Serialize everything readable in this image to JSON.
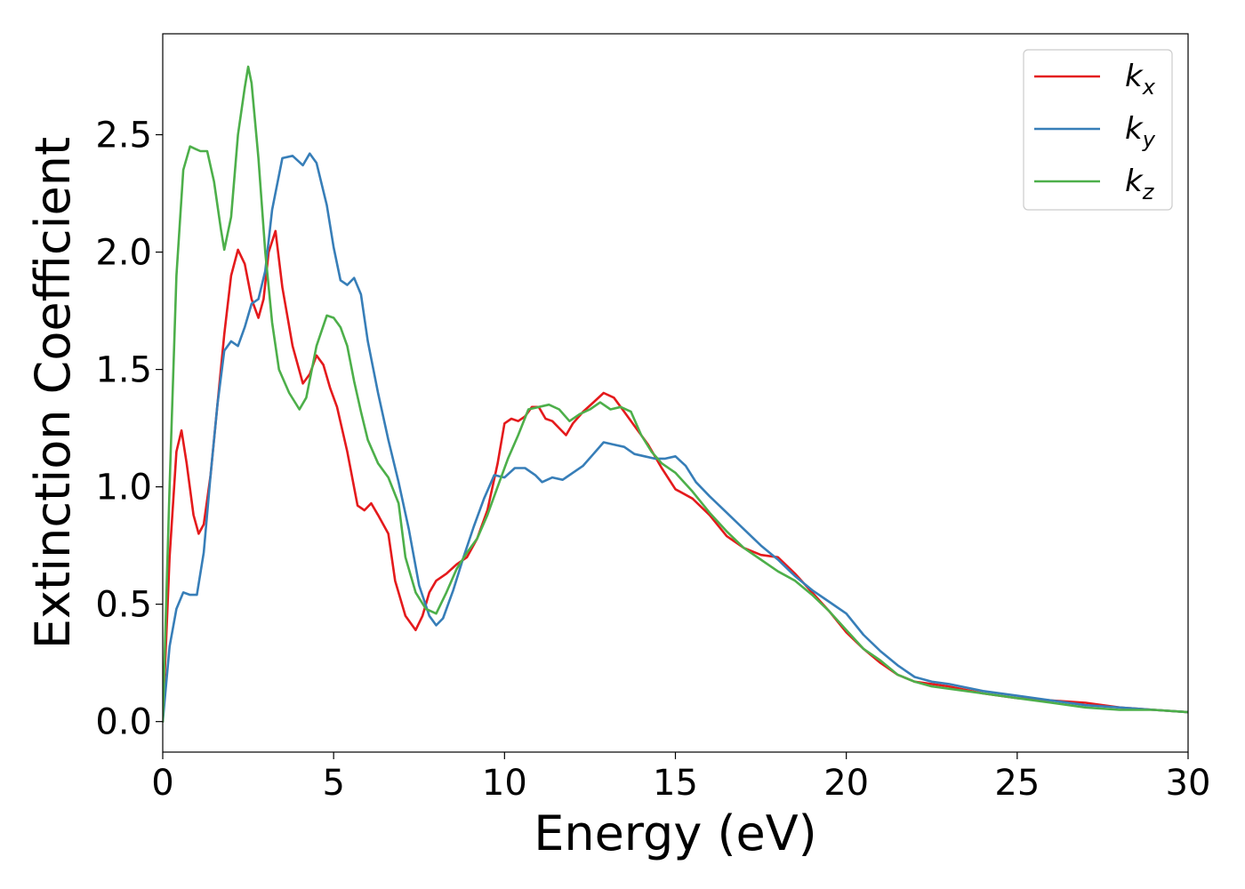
{
  "chart_data": {
    "type": "line",
    "xlabel": "Energy (eV)",
    "ylabel": "Extinction Coefficient",
    "xlim": [
      0,
      30
    ],
    "ylim": [
      -0.13,
      2.93
    ],
    "xticks": [
      0,
      5,
      10,
      15,
      20,
      25,
      30
    ],
    "xtick_labels": [
      "0",
      "5",
      "10",
      "15",
      "20",
      "25",
      "30"
    ],
    "yticks": [
      0.0,
      0.5,
      1.0,
      1.5,
      2.0,
      2.5
    ],
    "ytick_labels": [
      "0.0",
      "0.5",
      "1.0",
      "1.5",
      "2.0",
      "2.5"
    ],
    "grid": false,
    "legend_position": "top-right",
    "series": [
      {
        "name": "k_x",
        "label_main": "k",
        "label_sub": "x",
        "color": "#e41a1c",
        "x": [
          0,
          0.2,
          0.4,
          0.55,
          0.7,
          0.9,
          1.05,
          1.2,
          1.4,
          1.6,
          1.8,
          2.0,
          2.2,
          2.4,
          2.6,
          2.8,
          2.95,
          3.1,
          3.3,
          3.5,
          3.8,
          4.1,
          4.3,
          4.5,
          4.7,
          4.9,
          5.1,
          5.4,
          5.7,
          5.9,
          6.1,
          6.3,
          6.6,
          6.8,
          7.1,
          7.4,
          7.6,
          7.8,
          8.0,
          8.3,
          8.6,
          8.9,
          9.2,
          9.5,
          9.8,
          10.0,
          10.2,
          10.4,
          10.6,
          10.8,
          11.0,
          11.2,
          11.4,
          11.6,
          11.8,
          12.0,
          12.3,
          12.6,
          12.9,
          13.2,
          13.5,
          13.8,
          14.2,
          14.6,
          15.0,
          15.5,
          16.0,
          16.5,
          17.0,
          17.5,
          18.0,
          18.5,
          19.0,
          19.5,
          20.0,
          20.5,
          21.0,
          21.5,
          22.0,
          22.5,
          23.0,
          24.0,
          25.0,
          26.0,
          27.0,
          28.0,
          29.0,
          30.0
        ],
        "y": [
          0.0,
          0.7,
          1.15,
          1.24,
          1.1,
          0.88,
          0.8,
          0.84,
          1.05,
          1.35,
          1.65,
          1.9,
          2.01,
          1.95,
          1.8,
          1.72,
          1.8,
          2.0,
          2.09,
          1.85,
          1.6,
          1.44,
          1.48,
          1.56,
          1.52,
          1.42,
          1.34,
          1.15,
          0.92,
          0.9,
          0.93,
          0.88,
          0.8,
          0.6,
          0.45,
          0.39,
          0.45,
          0.55,
          0.6,
          0.63,
          0.67,
          0.7,
          0.78,
          0.9,
          1.1,
          1.27,
          1.29,
          1.28,
          1.3,
          1.34,
          1.34,
          1.29,
          1.28,
          1.25,
          1.22,
          1.27,
          1.32,
          1.36,
          1.4,
          1.38,
          1.32,
          1.26,
          1.18,
          1.08,
          0.99,
          0.95,
          0.88,
          0.79,
          0.74,
          0.71,
          0.7,
          0.63,
          0.55,
          0.47,
          0.38,
          0.31,
          0.25,
          0.2,
          0.17,
          0.16,
          0.15,
          0.12,
          0.1,
          0.09,
          0.08,
          0.06,
          0.05,
          0.04
        ]
      },
      {
        "name": "k_y",
        "label_main": "k",
        "label_sub": "y",
        "color": "#377eb8",
        "x": [
          0,
          0.2,
          0.4,
          0.6,
          0.8,
          1.0,
          1.2,
          1.4,
          1.6,
          1.8,
          2.0,
          2.2,
          2.4,
          2.6,
          2.8,
          3.0,
          3.2,
          3.5,
          3.8,
          4.1,
          4.3,
          4.5,
          4.8,
          5.0,
          5.2,
          5.4,
          5.6,
          5.8,
          6.0,
          6.3,
          6.6,
          6.9,
          7.2,
          7.5,
          7.8,
          8.0,
          8.2,
          8.5,
          8.8,
          9.1,
          9.4,
          9.7,
          10.0,
          10.3,
          10.6,
          10.9,
          11.1,
          11.4,
          11.7,
          12.0,
          12.3,
          12.6,
          12.9,
          13.2,
          13.5,
          13.8,
          14.1,
          14.4,
          14.7,
          15.0,
          15.3,
          15.6,
          16.0,
          16.5,
          17.0,
          17.5,
          18.0,
          18.5,
          19.0,
          19.5,
          20.0,
          20.5,
          21.0,
          21.5,
          22.0,
          22.5,
          23.0,
          24.0,
          25.0,
          26.0,
          27.0,
          28.0,
          29.0,
          30.0
        ],
        "y": [
          0.0,
          0.32,
          0.48,
          0.55,
          0.54,
          0.54,
          0.72,
          1.05,
          1.35,
          1.58,
          1.62,
          1.6,
          1.68,
          1.78,
          1.8,
          1.92,
          2.18,
          2.4,
          2.41,
          2.37,
          2.42,
          2.38,
          2.2,
          2.02,
          1.88,
          1.86,
          1.89,
          1.82,
          1.62,
          1.4,
          1.2,
          1.02,
          0.82,
          0.58,
          0.45,
          0.41,
          0.44,
          0.56,
          0.7,
          0.83,
          0.95,
          1.05,
          1.04,
          1.08,
          1.08,
          1.05,
          1.02,
          1.04,
          1.03,
          1.06,
          1.09,
          1.14,
          1.19,
          1.18,
          1.17,
          1.14,
          1.13,
          1.12,
          1.12,
          1.13,
          1.09,
          1.02,
          0.96,
          0.89,
          0.82,
          0.75,
          0.69,
          0.62,
          0.56,
          0.51,
          0.46,
          0.37,
          0.3,
          0.24,
          0.19,
          0.17,
          0.16,
          0.13,
          0.11,
          0.09,
          0.07,
          0.06,
          0.05,
          0.04
        ]
      },
      {
        "name": "k_z",
        "label_main": "k",
        "label_sub": "z",
        "color": "#4daf4a",
        "x": [
          0,
          0.2,
          0.4,
          0.6,
          0.8,
          0.95,
          1.1,
          1.3,
          1.5,
          1.7,
          1.8,
          2.0,
          2.2,
          2.4,
          2.5,
          2.6,
          2.8,
          3.0,
          3.2,
          3.4,
          3.7,
          4.0,
          4.2,
          4.5,
          4.8,
          5.0,
          5.2,
          5.4,
          5.6,
          5.8,
          6.0,
          6.3,
          6.6,
          6.9,
          7.1,
          7.4,
          7.7,
          8.0,
          8.3,
          8.6,
          8.9,
          9.2,
          9.5,
          9.8,
          10.1,
          10.4,
          10.7,
          11.0,
          11.3,
          11.6,
          11.9,
          12.2,
          12.5,
          12.8,
          13.1,
          13.4,
          13.7,
          14.0,
          14.3,
          14.6,
          15.0,
          15.5,
          16.0,
          16.5,
          17.0,
          17.5,
          18.0,
          18.5,
          19.0,
          19.5,
          20.0,
          20.5,
          21.0,
          21.5,
          22.0,
          22.5,
          23.0,
          24.0,
          25.0,
          26.0,
          27.0,
          28.0,
          29.0,
          30.0
        ],
        "y": [
          0.0,
          1.0,
          1.9,
          2.35,
          2.45,
          2.44,
          2.43,
          2.43,
          2.3,
          2.1,
          2.01,
          2.15,
          2.5,
          2.7,
          2.79,
          2.72,
          2.4,
          2.0,
          1.7,
          1.5,
          1.4,
          1.33,
          1.38,
          1.6,
          1.73,
          1.72,
          1.68,
          1.6,
          1.45,
          1.32,
          1.2,
          1.1,
          1.04,
          0.93,
          0.7,
          0.55,
          0.48,
          0.46,
          0.55,
          0.65,
          0.72,
          0.78,
          0.88,
          1.0,
          1.12,
          1.22,
          1.33,
          1.34,
          1.35,
          1.33,
          1.28,
          1.31,
          1.33,
          1.36,
          1.33,
          1.34,
          1.32,
          1.22,
          1.15,
          1.1,
          1.06,
          0.98,
          0.89,
          0.81,
          0.74,
          0.69,
          0.64,
          0.6,
          0.54,
          0.47,
          0.39,
          0.31,
          0.26,
          0.2,
          0.17,
          0.15,
          0.14,
          0.12,
          0.1,
          0.08,
          0.06,
          0.05,
          0.05,
          0.04
        ]
      }
    ]
  }
}
